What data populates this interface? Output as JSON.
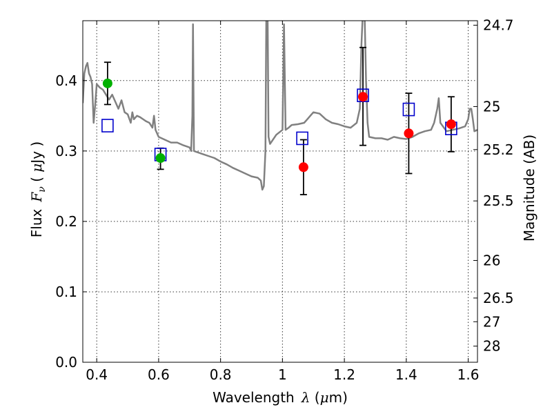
{
  "chart_data": {
    "type": "scatter",
    "xlabel": {
      "prefix": "Wavelength",
      "symbol": "λ",
      "unit_open": " (",
      "unit_mu": "μ",
      "unit_rest": "m)"
    },
    "ylabel": {
      "prefix": "Flux",
      "symbol": "F",
      "subscript": "ν",
      "unit_open": " ( ",
      "unit_mu": "μ",
      "unit_rest": "Jy )"
    },
    "y2label": "Magnitude (AB)",
    "xlim": [
      0.355,
      1.63
    ],
    "ylim": [
      0.0,
      0.485
    ],
    "xticks": [
      {
        "v": 0.4,
        "label": "0.4"
      },
      {
        "v": 0.6,
        "label": "0.6"
      },
      {
        "v": 0.8,
        "label": "0.8"
      },
      {
        "v": 1.0,
        "label": "1"
      },
      {
        "v": 1.2,
        "label": "1.2"
      },
      {
        "v": 1.4,
        "label": "1.4"
      },
      {
        "v": 1.6,
        "label": "1.6"
      }
    ],
    "yticks": [
      {
        "v": 0.0,
        "label": "0.0"
      },
      {
        "v": 0.1,
        "label": "0.1"
      },
      {
        "v": 0.2,
        "label": "0.2"
      },
      {
        "v": 0.3,
        "label": "0.3"
      },
      {
        "v": 0.4,
        "label": "0.4"
      }
    ],
    "mag_ticks": [
      {
        "mag": 24.7,
        "label": "24.7"
      },
      {
        "mag": 25.0,
        "label": "25"
      },
      {
        "mag": 25.2,
        "label": "25.2"
      },
      {
        "mag": 25.5,
        "label": "25.5"
      },
      {
        "mag": 26.0,
        "label": "26"
      },
      {
        "mag": 26.5,
        "label": "26.5"
      },
      {
        "mag": 27.0,
        "label": "27"
      },
      {
        "mag": 28.0,
        "label": "28"
      }
    ],
    "grid": true,
    "colors": {
      "spectrum": "#808080",
      "green": "#00b000",
      "red": "#ff0000",
      "model": "#0000cc",
      "errorbar": "#000000"
    },
    "spectrum": [
      [
        0.355,
        0.368
      ],
      [
        0.36,
        0.41
      ],
      [
        0.365,
        0.42
      ],
      [
        0.37,
        0.425
      ],
      [
        0.375,
        0.41
      ],
      [
        0.38,
        0.405
      ],
      [
        0.385,
        0.395
      ],
      [
        0.39,
        0.34
      ],
      [
        0.395,
        0.365
      ],
      [
        0.4,
        0.395
      ],
      [
        0.41,
        0.39
      ],
      [
        0.42,
        0.387
      ],
      [
        0.43,
        0.38
      ],
      [
        0.44,
        0.373
      ],
      [
        0.45,
        0.38
      ],
      [
        0.46,
        0.37
      ],
      [
        0.47,
        0.36
      ],
      [
        0.48,
        0.372
      ],
      [
        0.49,
        0.355
      ],
      [
        0.5,
        0.352
      ],
      [
        0.51,
        0.34
      ],
      [
        0.515,
        0.355
      ],
      [
        0.52,
        0.345
      ],
      [
        0.53,
        0.35
      ],
      [
        0.54,
        0.348
      ],
      [
        0.55,
        0.345
      ],
      [
        0.56,
        0.342
      ],
      [
        0.57,
        0.34
      ],
      [
        0.58,
        0.333
      ],
      [
        0.585,
        0.35
      ],
      [
        0.59,
        0.33
      ],
      [
        0.6,
        0.32
      ],
      [
        0.62,
        0.316
      ],
      [
        0.64,
        0.312
      ],
      [
        0.66,
        0.312
      ],
      [
        0.68,
        0.308
      ],
      [
        0.7,
        0.305
      ],
      [
        0.705,
        0.3
      ],
      [
        0.709,
        0.35
      ],
      [
        0.711,
        0.48
      ],
      [
        0.714,
        0.3
      ],
      [
        0.72,
        0.299
      ],
      [
        0.74,
        0.296
      ],
      [
        0.76,
        0.293
      ],
      [
        0.78,
        0.29
      ],
      [
        0.8,
        0.285
      ],
      [
        0.82,
        0.281
      ],
      [
        0.84,
        0.276
      ],
      [
        0.86,
        0.272
      ],
      [
        0.88,
        0.268
      ],
      [
        0.9,
        0.264
      ],
      [
        0.92,
        0.262
      ],
      [
        0.93,
        0.258
      ],
      [
        0.935,
        0.245
      ],
      [
        0.94,
        0.25
      ],
      [
        0.945,
        0.3
      ],
      [
        0.948,
        0.5
      ],
      [
        0.952,
        0.5
      ],
      [
        0.955,
        0.32
      ],
      [
        0.96,
        0.31
      ],
      [
        0.98,
        0.323
      ],
      [
        1.0,
        0.33
      ],
      [
        1.005,
        0.48
      ],
      [
        1.01,
        0.33
      ],
      [
        1.02,
        0.333
      ],
      [
        1.03,
        0.337
      ],
      [
        1.05,
        0.338
      ],
      [
        1.07,
        0.34
      ],
      [
        1.08,
        0.345
      ],
      [
        1.09,
        0.35
      ],
      [
        1.1,
        0.355
      ],
      [
        1.12,
        0.353
      ],
      [
        1.14,
        0.345
      ],
      [
        1.16,
        0.34
      ],
      [
        1.18,
        0.338
      ],
      [
        1.2,
        0.335
      ],
      [
        1.22,
        0.333
      ],
      [
        1.24,
        0.34
      ],
      [
        1.25,
        0.36
      ],
      [
        1.255,
        0.45
      ],
      [
        1.26,
        0.5
      ],
      [
        1.265,
        0.5
      ],
      [
        1.27,
        0.4
      ],
      [
        1.275,
        0.34
      ],
      [
        1.28,
        0.32
      ],
      [
        1.3,
        0.318
      ],
      [
        1.32,
        0.318
      ],
      [
        1.34,
        0.316
      ],
      [
        1.36,
        0.32
      ],
      [
        1.38,
        0.318
      ],
      [
        1.4,
        0.317
      ],
      [
        1.42,
        0.32
      ],
      [
        1.44,
        0.325
      ],
      [
        1.46,
        0.328
      ],
      [
        1.48,
        0.33
      ],
      [
        1.49,
        0.34
      ],
      [
        1.5,
        0.36
      ],
      [
        1.505,
        0.375
      ],
      [
        1.51,
        0.34
      ],
      [
        1.53,
        0.328
      ],
      [
        1.55,
        0.33
      ],
      [
        1.57,
        0.332
      ],
      [
        1.59,
        0.335
      ],
      [
        1.6,
        0.345
      ],
      [
        1.605,
        0.36
      ],
      [
        1.61,
        0.36
      ],
      [
        1.615,
        0.345
      ],
      [
        1.62,
        0.328
      ],
      [
        1.63,
        0.33
      ]
    ],
    "observations_green": [
      {
        "x": 0.435,
        "y": 0.396,
        "err": [
          0.366,
          0.426
        ]
      },
      {
        "x": 0.606,
        "y": 0.29,
        "err": [
          0.274,
          0.304
        ]
      }
    ],
    "observations_red": [
      {
        "x": 1.068,
        "y": 0.277,
        "err": [
          0.238,
          0.316
        ]
      },
      {
        "x": 1.26,
        "y": 0.377,
        "err": [
          0.308,
          0.447
        ]
      },
      {
        "x": 1.408,
        "y": 0.325,
        "err": [
          0.268,
          0.382
        ]
      },
      {
        "x": 1.545,
        "y": 0.338,
        "err": [
          0.299,
          0.377
        ]
      }
    ],
    "model_points": [
      {
        "x": 0.435,
        "y": 0.336
      },
      {
        "x": 0.606,
        "y": 0.295
      },
      {
        "x": 1.064,
        "y": 0.318
      },
      {
        "x": 1.26,
        "y": 0.379
      },
      {
        "x": 1.408,
        "y": 0.359
      },
      {
        "x": 1.545,
        "y": 0.332
      }
    ]
  }
}
